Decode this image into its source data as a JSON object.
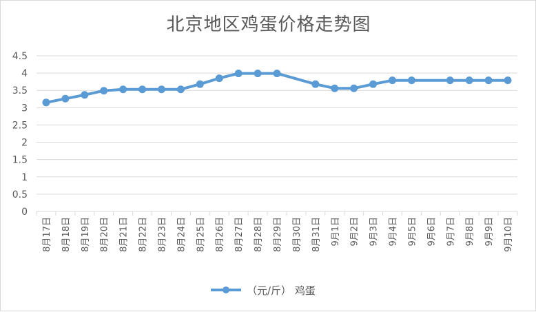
{
  "chart_data": {
    "type": "line",
    "title": "北京地区鸡蛋价格走势图",
    "categories": [
      "8月17日",
      "8月18日",
      "8月19日",
      "8月20日",
      "8月21日",
      "8月22日",
      "8月23日",
      "8月24日",
      "8月25日",
      "8月26日",
      "8月27日",
      "8月28日",
      "8月29日",
      "8月30日",
      "8月31日",
      "9月1日",
      "9月2日",
      "9月3日",
      "9月4日",
      "9月5日",
      "9月6日",
      "9月7日",
      "9月8日",
      "9月9日",
      "9月10日"
    ],
    "series": [
      {
        "name": "（元/斤） 鸡蛋",
        "values": [
          3.15,
          3.26,
          3.37,
          3.49,
          3.53,
          3.53,
          3.53,
          3.53,
          3.68,
          3.85,
          3.99,
          3.99,
          3.99,
          null,
          3.68,
          3.56,
          3.56,
          3.68,
          3.79,
          3.79,
          null,
          3.79,
          3.79,
          3.79,
          3.79
        ]
      }
    ],
    "ylim": [
      0,
      4.5
    ],
    "yticks": [
      "0",
      "0.5",
      "1",
      "1.5",
      "2",
      "2.5",
      "3",
      "3.5",
      "4",
      "4.5"
    ],
    "grid": true,
    "legend_position": "bottom",
    "colors": {
      "series": "#5b9bd5",
      "grid": "#d9d9d9",
      "text": "#595959"
    }
  }
}
